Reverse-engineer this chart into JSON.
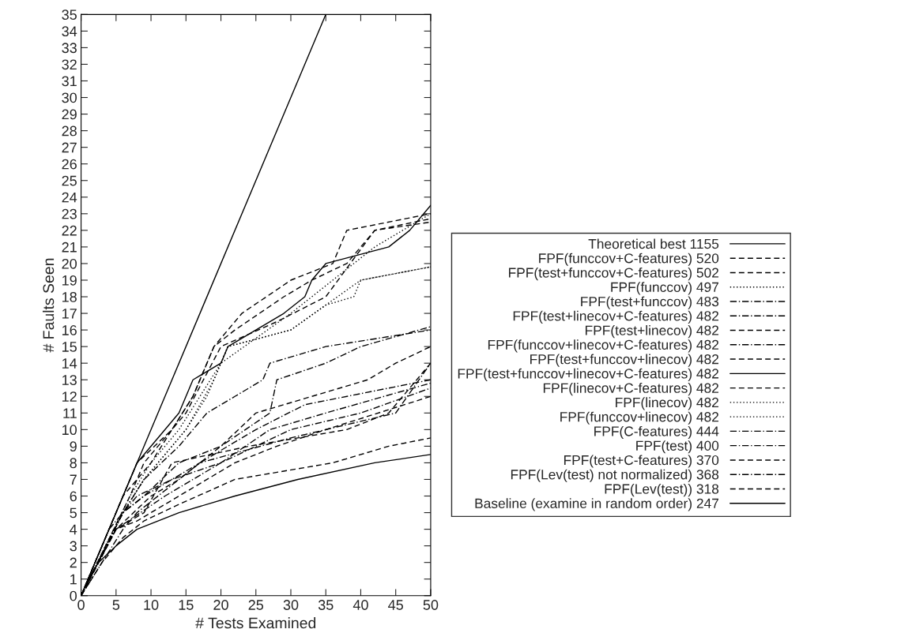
{
  "chart_data": {
    "type": "line",
    "xlabel": "# Tests Examined",
    "ylabel": "# Faults Seen",
    "xlim": [
      0,
      50
    ],
    "ylim": [
      0,
      35
    ],
    "xticks": [
      0,
      5,
      10,
      15,
      20,
      25,
      30,
      35,
      40,
      45,
      50
    ],
    "yticks": [
      0,
      1,
      2,
      3,
      4,
      5,
      6,
      7,
      8,
      9,
      10,
      11,
      12,
      13,
      14,
      15,
      16,
      17,
      18,
      19,
      20,
      21,
      22,
      23,
      24,
      25,
      26,
      27,
      28,
      29,
      30,
      31,
      32,
      33,
      34,
      35
    ],
    "grid": false,
    "legend": "right",
    "marker": "none",
    "series": [
      {
        "name": "Theoretical best 1155",
        "color": "#000000",
        "line_style": "solid",
        "x": [
          0,
          35
        ],
        "values": [
          0,
          35
        ]
      },
      {
        "name": "FPF(funccov+C-features) 520",
        "color": "#000000",
        "line_style": "dashed",
        "x": [
          0,
          6,
          10,
          16,
          19,
          23,
          30,
          36,
          38,
          50
        ],
        "values": [
          0,
          6,
          8,
          12,
          15,
          17,
          19,
          20,
          22,
          23
        ]
      },
      {
        "name": "FPF(test+funccov+C-features) 502",
        "color": "#000000",
        "line_style": "dashed",
        "x": [
          0,
          7,
          9,
          15,
          20,
          28,
          35,
          42,
          50
        ],
        "values": [
          0,
          6,
          8,
          11,
          15,
          16.5,
          18,
          22,
          22.7
        ]
      },
      {
        "name": "FPF(funccov) 497",
        "color": "#000000",
        "line_style": "dotted",
        "x": [
          0,
          6,
          9,
          15,
          18,
          21,
          30,
          35,
          39,
          40,
          50
        ],
        "values": [
          0,
          5,
          7,
          10,
          12,
          15,
          16,
          17.5,
          18,
          19,
          19.8
        ]
      },
      {
        "name": "FPF(test+funccov) 483",
        "color": "#000000",
        "line_style": "dashdot",
        "x": [
          0,
          6,
          9,
          14,
          18,
          22,
          26,
          27,
          35,
          50
        ],
        "values": [
          0,
          5,
          7,
          9,
          11,
          12,
          13,
          14,
          15,
          16
        ]
      },
      {
        "name": "FPF(test+linecov+C-features) 482",
        "color": "#000000",
        "line_style": "dashdot",
        "x": [
          0,
          6,
          9,
          14,
          20,
          27,
          28,
          35,
          40,
          50
        ],
        "values": [
          0,
          5,
          6,
          8,
          9,
          11,
          13,
          14,
          15,
          16.2
        ]
      },
      {
        "name": "FPF(test+linecov) 482",
        "color": "#000000",
        "line_style": "dashed",
        "x": [
          0,
          5,
          10,
          14,
          20,
          25,
          33,
          41,
          45,
          50
        ],
        "values": [
          0,
          4,
          6,
          7,
          9,
          11,
          12,
          13,
          14,
          15
        ]
      },
      {
        "name": "FPF(funccov+linecov+C-features) 482",
        "color": "#000000",
        "line_style": "dashdot",
        "x": [
          0,
          6,
          8,
          14,
          17,
          25,
          32,
          44,
          50
        ],
        "values": [
          0,
          4,
          5,
          7,
          8,
          10,
          11.5,
          12.5,
          13
        ]
      },
      {
        "name": "FPF(test+funccov+linecov) 482",
        "color": "#000000",
        "line_style": "dashed",
        "x": [
          0,
          5,
          9,
          13,
          24,
          38,
          44,
          50
        ],
        "values": [
          0,
          4,
          5,
          8,
          9,
          10,
          11,
          14
        ]
      },
      {
        "name": "FPF(test+funccov+linecov+C-features) 482",
        "color": "#000000",
        "line_style": "solid",
        "x": [
          0,
          8,
          14,
          16,
          20,
          21,
          25,
          29,
          32,
          33,
          35,
          44,
          47,
          50
        ],
        "values": [
          0,
          8,
          11,
          13,
          14,
          15,
          16,
          17,
          18,
          19,
          20,
          21,
          22,
          23.5
        ]
      },
      {
        "name": "FPF(linecov+C-features) 482",
        "color": "#000000",
        "line_style": "dashed",
        "x": [
          0,
          8,
          13,
          16,
          19,
          22,
          29,
          33,
          38,
          42,
          50
        ],
        "values": [
          0,
          8,
          10,
          12,
          15,
          16,
          18,
          19,
          20,
          22,
          22.5
        ]
      },
      {
        "name": "FPF(linecov) 482",
        "color": "#000000",
        "line_style": "dotted",
        "x": [
          0,
          7,
          10,
          14,
          20,
          30,
          36,
          42,
          50
        ],
        "values": [
          0,
          6,
          8,
          10,
          14,
          17,
          19,
          21,
          23
        ]
      },
      {
        "name": "FPF(funccov+linecov) 482",
        "color": "#000000",
        "line_style": "dotted",
        "x": [
          0,
          6,
          9,
          15,
          19,
          21,
          30,
          35,
          40,
          50
        ],
        "values": [
          0,
          5,
          7,
          10,
          13,
          15,
          16,
          17.5,
          19,
          19.8
        ]
      },
      {
        "name": "FPF(C-features) 444",
        "color": "#000000",
        "line_style": "dashdot",
        "x": [
          0,
          4,
          8,
          13,
          20,
          27,
          35,
          50
        ],
        "values": [
          0,
          4,
          6,
          7,
          8,
          10,
          11,
          12.8
        ]
      },
      {
        "name": "FPF(test) 400",
        "color": "#000000",
        "line_style": "dashdot",
        "x": [
          0,
          6,
          9,
          17,
          30,
          45,
          50
        ],
        "values": [
          0,
          5,
          6,
          8,
          9.5,
          11,
          14
        ]
      },
      {
        "name": "FPF(test+C-features) 370",
        "color": "#000000",
        "line_style": "dashed",
        "x": [
          0,
          5,
          8,
          10,
          14,
          22,
          28,
          35,
          50
        ],
        "values": [
          0,
          4,
          4.5,
          5,
          6,
          8,
          9,
          10,
          12
        ]
      },
      {
        "name": "FPF(Lev(test) not normalized) 368",
        "color": "#000000",
        "line_style": "dashdot",
        "x": [
          0,
          5,
          12,
          20,
          30,
          40,
          50
        ],
        "values": [
          0,
          4,
          6,
          8,
          10,
          11,
          12.5
        ]
      },
      {
        "name": "FPF(Lev(test)) 318",
        "color": "#000000",
        "line_style": "dashed",
        "x": [
          0,
          3,
          6,
          9,
          14,
          22,
          36,
          44,
          50
        ],
        "values": [
          0,
          2,
          3.5,
          4.5,
          5.5,
          7,
          8,
          9,
          9.5
        ]
      },
      {
        "name": "Baseline (examine in random order) 247",
        "color": "#000000",
        "line_style": "solid",
        "x": [
          1,
          2.5,
          5,
          8,
          14,
          22,
          31,
          42,
          50
        ],
        "values": [
          1,
          2,
          3,
          4,
          5,
          6,
          7,
          8,
          8.5
        ]
      }
    ]
  }
}
